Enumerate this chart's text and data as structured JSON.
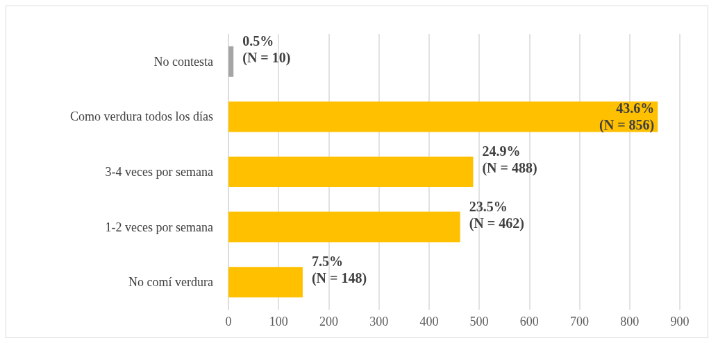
{
  "chart_data": {
    "type": "bar",
    "orientation": "horizontal",
    "categories": [
      "No contesta",
      "Como verdura todos los días",
      "3-4 veces por semana",
      "1-2 veces por semana",
      "No comí verdura"
    ],
    "values": [
      10,
      856,
      488,
      462,
      148
    ],
    "colors": [
      "#a5a5a5",
      "#ffc000",
      "#ffc000",
      "#ffc000",
      "#ffc000"
    ],
    "value_labels": [
      "0.5%\n(N = 10)",
      "43.6%\n(N = 856)",
      "24.9%\n(N = 488)",
      "23.5%\n(N = 462)",
      "7.5%\n(N = 148)"
    ],
    "xlim": [
      0,
      900
    ],
    "xticks": [
      0,
      100,
      200,
      300,
      400,
      500,
      600,
      700,
      800,
      900
    ],
    "grid": "x"
  }
}
